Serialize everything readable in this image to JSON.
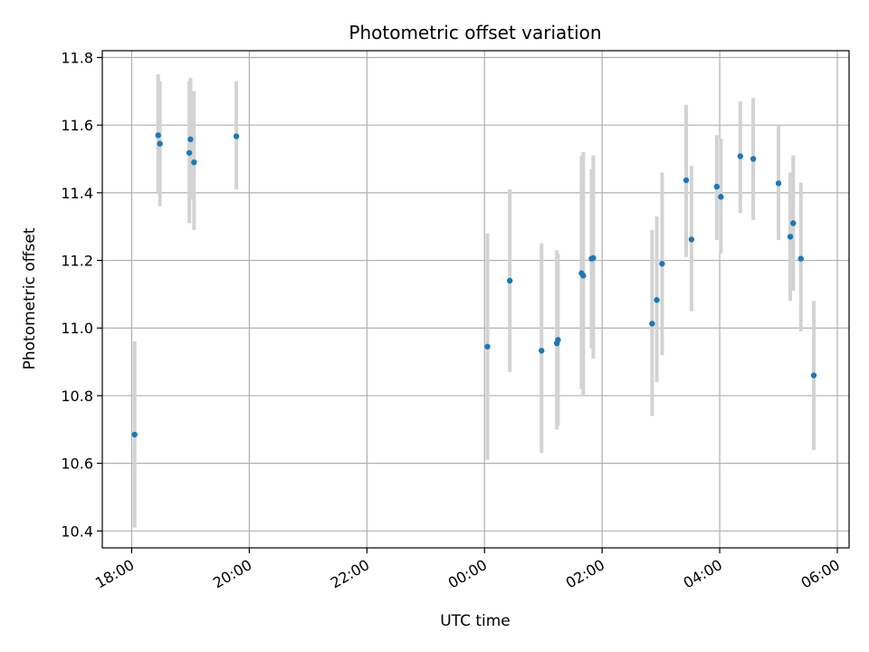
{
  "chart_data": {
    "type": "scatter",
    "title": "Photometric offset variation",
    "xlabel": "UTC time",
    "ylabel": "Photometric offset",
    "xlim_hours": [
      17.5,
      30.2
    ],
    "ylim": [
      10.35,
      11.82
    ],
    "grid": true,
    "point_color": "#1f77b4",
    "errorbar_color": "#d3d3d3",
    "x_ticks": [
      {
        "hour": 18,
        "label": "18:00"
      },
      {
        "hour": 20,
        "label": "20:00"
      },
      {
        "hour": 22,
        "label": "22:00"
      },
      {
        "hour": 24,
        "label": "00:00"
      },
      {
        "hour": 26,
        "label": "02:00"
      },
      {
        "hour": 28,
        "label": "04:00"
      },
      {
        "hour": 30,
        "label": "06:00"
      }
    ],
    "y_ticks": [
      {
        "value": 10.4,
        "label": "10.4"
      },
      {
        "value": 10.6,
        "label": "10.6"
      },
      {
        "value": 10.8,
        "label": "10.8"
      },
      {
        "value": 11.0,
        "label": "11.0"
      },
      {
        "value": 11.2,
        "label": "11.2"
      },
      {
        "value": 11.4,
        "label": "11.4"
      },
      {
        "value": 11.6,
        "label": "11.6"
      },
      {
        "value": 11.8,
        "label": "11.8"
      }
    ],
    "points": [
      {
        "x": 18.05,
        "y": 10.685,
        "ylo": 10.41,
        "yhi": 10.96
      },
      {
        "x": 18.45,
        "y": 11.57,
        "ylo": 11.4,
        "yhi": 11.75
      },
      {
        "x": 18.48,
        "y": 11.545,
        "ylo": 11.36,
        "yhi": 11.73
      },
      {
        "x": 18.98,
        "y": 11.518,
        "ylo": 11.31,
        "yhi": 11.73
      },
      {
        "x": 19.0,
        "y": 11.558,
        "ylo": 11.38,
        "yhi": 11.74
      },
      {
        "x": 19.06,
        "y": 11.49,
        "ylo": 11.29,
        "yhi": 11.7
      },
      {
        "x": 19.78,
        "y": 11.567,
        "ylo": 11.41,
        "yhi": 11.73
      },
      {
        "x": 24.05,
        "y": 10.945,
        "ylo": 10.61,
        "yhi": 11.28
      },
      {
        "x": 24.43,
        "y": 11.14,
        "ylo": 10.87,
        "yhi": 11.41
      },
      {
        "x": 24.97,
        "y": 10.933,
        "ylo": 10.63,
        "yhi": 11.25
      },
      {
        "x": 25.23,
        "y": 10.955,
        "ylo": 10.7,
        "yhi": 11.23
      },
      {
        "x": 25.25,
        "y": 10.965,
        "ylo": 10.71,
        "yhi": 11.22
      },
      {
        "x": 25.65,
        "y": 11.162,
        "ylo": 10.82,
        "yhi": 11.51
      },
      {
        "x": 25.68,
        "y": 11.155,
        "ylo": 10.8,
        "yhi": 11.52
      },
      {
        "x": 25.82,
        "y": 11.205,
        "ylo": 10.94,
        "yhi": 11.47
      },
      {
        "x": 25.85,
        "y": 11.207,
        "ylo": 10.91,
        "yhi": 11.51
      },
      {
        "x": 26.85,
        "y": 11.013,
        "ylo": 10.74,
        "yhi": 11.29
      },
      {
        "x": 26.93,
        "y": 11.083,
        "ylo": 10.84,
        "yhi": 11.33
      },
      {
        "x": 27.02,
        "y": 11.19,
        "ylo": 10.92,
        "yhi": 11.46
      },
      {
        "x": 27.43,
        "y": 11.437,
        "ylo": 11.21,
        "yhi": 11.66
      },
      {
        "x": 27.52,
        "y": 11.262,
        "ylo": 11.05,
        "yhi": 11.48
      },
      {
        "x": 27.95,
        "y": 11.418,
        "ylo": 11.26,
        "yhi": 11.57
      },
      {
        "x": 28.02,
        "y": 11.388,
        "ylo": 11.22,
        "yhi": 11.56
      },
      {
        "x": 28.35,
        "y": 11.508,
        "ylo": 11.34,
        "yhi": 11.67
      },
      {
        "x": 28.57,
        "y": 11.5,
        "ylo": 11.32,
        "yhi": 11.68
      },
      {
        "x": 29.0,
        "y": 11.428,
        "ylo": 11.26,
        "yhi": 11.6
      },
      {
        "x": 29.2,
        "y": 11.27,
        "ylo": 11.08,
        "yhi": 11.46
      },
      {
        "x": 29.25,
        "y": 11.31,
        "ylo": 11.11,
        "yhi": 11.51
      },
      {
        "x": 29.38,
        "y": 11.205,
        "ylo": 10.99,
        "yhi": 11.43
      },
      {
        "x": 29.6,
        "y": 10.86,
        "ylo": 10.64,
        "yhi": 11.08
      }
    ]
  }
}
